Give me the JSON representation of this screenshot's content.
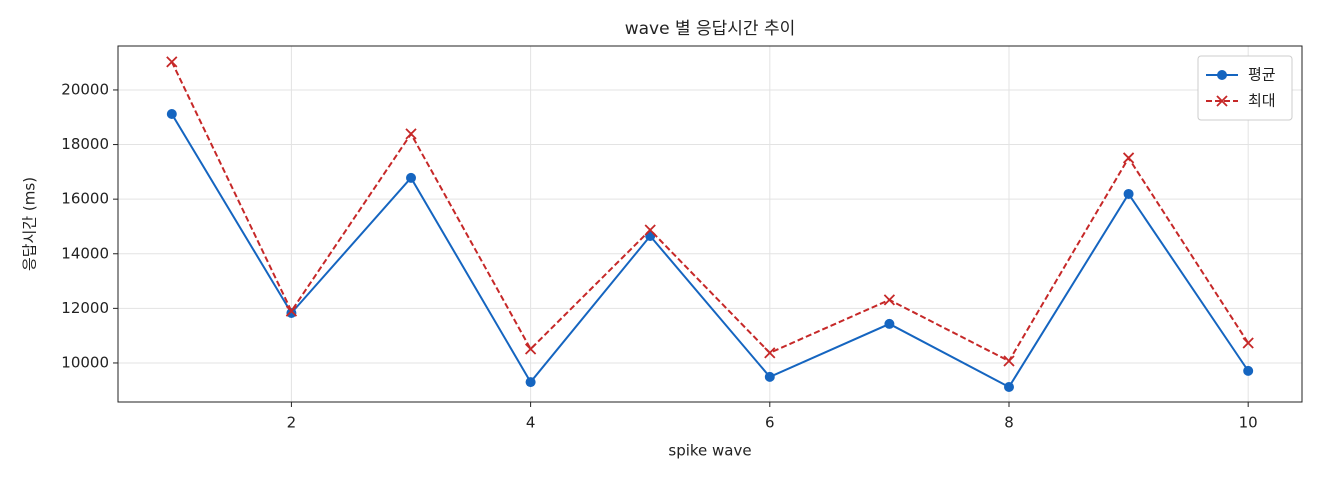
{
  "chart_data": {
    "type": "line",
    "title": "wave 별 응답시간 추이",
    "xlabel": "spike wave",
    "ylabel": "응답시간 (ms)",
    "x": [
      1,
      2,
      3,
      4,
      5,
      6,
      7,
      8,
      9,
      10
    ],
    "series": [
      {
        "name": "평균",
        "color": "#1565c0",
        "marker": "o",
        "linestyle": "solid",
        "values": [
          19120,
          11830,
          16780,
          9300,
          14650,
          9490,
          11430,
          9120,
          16190,
          9710
        ]
      },
      {
        "name": "최대",
        "color": "#c62828",
        "marker": "x",
        "linestyle": "dashed",
        "values": [
          21030,
          11900,
          18390,
          10510,
          14870,
          10370,
          12310,
          10070,
          17510,
          10730
        ]
      }
    ],
    "xlim": [
      0.55,
      10.45
    ],
    "xticks": [
      2,
      4,
      6,
      8,
      10
    ],
    "ylim": [
      8570,
      21610
    ],
    "yticks": [
      10000,
      12000,
      14000,
      16000,
      18000,
      20000
    ],
    "grid": true,
    "legend": "upper right"
  }
}
